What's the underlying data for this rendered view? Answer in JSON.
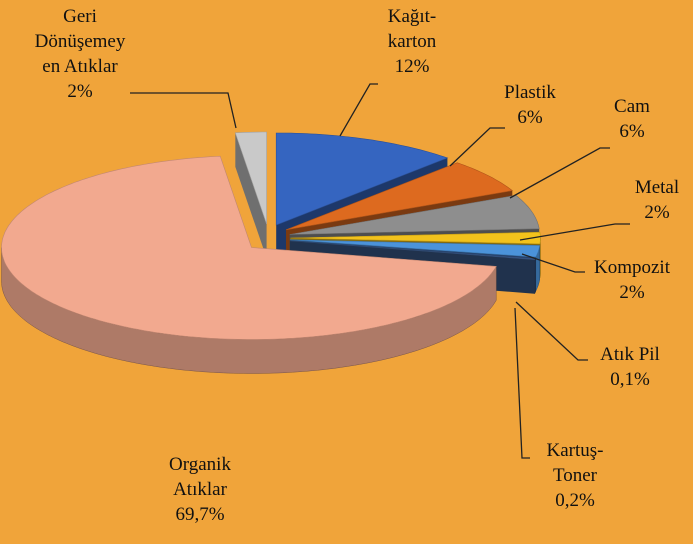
{
  "chart_data": {
    "type": "pie3d",
    "categories": [
      "Kağıt-\nkarton",
      "Plastik",
      "Cam",
      "Metal",
      "Kompozit",
      "Atık Pil",
      "Kartuş-\nToner",
      "Organik\nAtıklar",
      "Geri\nDönüşemey\nen Atıklar"
    ],
    "values": [
      12,
      6,
      6,
      2,
      2,
      0.1,
      0.2,
      69.7,
      2
    ],
    "value_labels": [
      "12%",
      "6%",
      "6%",
      "2%",
      "2%",
      "0,1%",
      "0,2%",
      "69,7%",
      "2%"
    ],
    "colors": [
      "#3565c0",
      "#dd6a1f",
      "#8e8e8e",
      "#f2c21c",
      "#4b93da",
      "#2d4d85",
      "#3b5b8c",
      "#f2a98f",
      "#c9c9c9"
    ],
    "background": "#f0a43a"
  }
}
